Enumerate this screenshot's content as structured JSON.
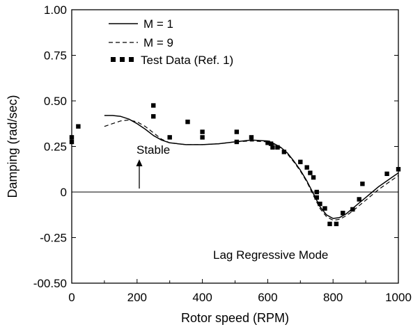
{
  "chart_data": {
    "type": "scatter",
    "title": "",
    "xlabel": "Rotor speed (RPM)",
    "ylabel": "Damping (rad/sec)",
    "xlim": [
      0,
      1000
    ],
    "ylim": [
      -0.5,
      1.0
    ],
    "x_ticks": [
      0,
      200,
      400,
      600,
      800,
      1000
    ],
    "x_tick_labels": [
      "0",
      "200",
      "400",
      "600",
      "800",
      "1000"
    ],
    "y_ticks": [
      1.0,
      0.75,
      0.5,
      0.25,
      0,
      -0.25,
      -0.5
    ],
    "y_tick_labels": [
      "1.00",
      "0.75",
      "0.50",
      "0.25",
      "0",
      "-0.25",
      "-00.50"
    ],
    "grid": false,
    "legend_position": "top-left",
    "series": [
      {
        "name": "M = 1",
        "style": "solid",
        "x": [
          100,
          125,
          150,
          175,
          200,
          225,
          250,
          275,
          300,
          350,
          400,
          450,
          500,
          550,
          600,
          620,
          640,
          660,
          680,
          700,
          720,
          740,
          760,
          780,
          800,
          820,
          840,
          860,
          880,
          900,
          920,
          940,
          960,
          980,
          1000
        ],
        "y": [
          0.42,
          0.42,
          0.415,
          0.4,
          0.375,
          0.345,
          0.31,
          0.285,
          0.27,
          0.26,
          0.26,
          0.265,
          0.275,
          0.285,
          0.28,
          0.265,
          0.245,
          0.215,
          0.17,
          0.12,
          0.06,
          -0.01,
          -0.08,
          -0.125,
          -0.145,
          -0.14,
          -0.12,
          -0.09,
          -0.06,
          -0.03,
          0.0,
          0.03,
          0.055,
          0.08,
          0.105
        ]
      },
      {
        "name": "M = 9",
        "style": "dashed",
        "x": [
          100,
          125,
          150,
          175,
          200,
          225,
          250,
          275,
          300,
          350,
          400,
          450,
          500,
          550,
          600,
          620,
          640,
          660,
          680,
          700,
          720,
          740,
          760,
          780,
          800,
          820,
          840,
          860,
          880,
          900,
          920,
          940,
          960,
          980,
          1000
        ],
        "y": [
          0.36,
          0.375,
          0.39,
          0.395,
          0.385,
          0.36,
          0.325,
          0.29,
          0.27,
          0.26,
          0.26,
          0.265,
          0.275,
          0.28,
          0.275,
          0.26,
          0.24,
          0.21,
          0.165,
          0.115,
          0.055,
          -0.02,
          -0.09,
          -0.135,
          -0.155,
          -0.15,
          -0.13,
          -0.105,
          -0.075,
          -0.045,
          -0.015,
          0.015,
          0.04,
          0.065,
          0.09
        ]
      },
      {
        "name": "Test Data (Ref. 1)",
        "style": "markers",
        "x": [
          0,
          0,
          20,
          250,
          250,
          300,
          355,
          400,
          400,
          505,
          505,
          550,
          600,
          610,
          615,
          630,
          650,
          700,
          720,
          730,
          740,
          750,
          750,
          760,
          775,
          790,
          810,
          830,
          860,
          880,
          890,
          965,
          1000
        ],
        "y": [
          0.3,
          0.275,
          0.36,
          0.475,
          0.415,
          0.3,
          0.385,
          0.33,
          0.3,
          0.33,
          0.275,
          0.3,
          0.27,
          0.265,
          0.245,
          0.245,
          0.22,
          0.165,
          0.135,
          0.105,
          0.08,
          0.0,
          -0.03,
          -0.065,
          -0.09,
          -0.175,
          -0.175,
          -0.115,
          -0.095,
          -0.04,
          0.045,
          0.1,
          0.125
        ]
      }
    ],
    "annotations": {
      "stable_label": "Stable",
      "mode_label": "Lag Regressive Mode"
    }
  }
}
